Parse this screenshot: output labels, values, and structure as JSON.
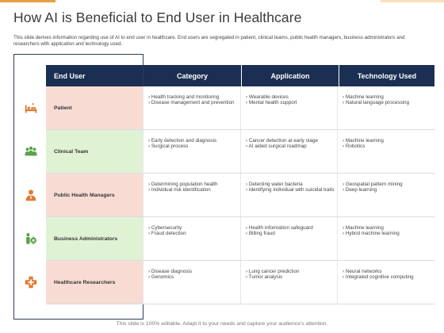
{
  "slide": {
    "title": "How AI is Beneficial to End User in Healthcare",
    "description": "This slide derives information regarding use of AI to end user in healthcare. End users are segregated in patient, clinical teams, public health managers, business administrators and researchers with application and technology used.",
    "footer": "This slide is 100% editable. Adapt it to your needs and capture your audience's attention."
  },
  "colors": {
    "header_bg": "#1b2f52",
    "pink_cell": "#f8dcd3",
    "green_cell": "#dff3d4",
    "icon_orange": "#e07a2e",
    "icon_green": "#5aa34a"
  },
  "table": {
    "headers": [
      "End User",
      "Category",
      "Application",
      "Technology Used"
    ],
    "rows": [
      {
        "user": "Patient",
        "icon": "hospital-bed-icon",
        "category": [
          "Health tracking and monitoring",
          "Disease management and prevention"
        ],
        "application": [
          "Wearable devices",
          "Mental health support"
        ],
        "technology": [
          "Machine learning",
          "Natural language processing"
        ]
      },
      {
        "user": "Clinical Team",
        "icon": "team-icon",
        "category": [
          "Early detection and diagnosis",
          "Surgical process"
        ],
        "application": [
          "Cancer detection at early stage",
          "AI aided surgical roadmap"
        ],
        "technology": [
          "Machine learning",
          "Robotics"
        ]
      },
      {
        "user": "Public Health Managers",
        "icon": "manager-icon",
        "category": [
          "Determining population health",
          "Individual risk identification"
        ],
        "application": [
          "Detecting water bacteria",
          "Identifying individual with suicidal traits"
        ],
        "technology": [
          "Geospatial pattern mining",
          "Deep learning"
        ]
      },
      {
        "user": "Business Administrators",
        "icon": "admin-gear-icon",
        "category": [
          "Cybersecurity",
          "Fraud detection"
        ],
        "application": [
          "Health information safeguard",
          "Billing fraud"
        ],
        "technology": [
          "Machine learning",
          "Hybrid machine learning"
        ]
      },
      {
        "user": "Healthcare Researchers",
        "icon": "medical-cross-icon",
        "category": [
          "Disease diagnosis",
          "Genomics"
        ],
        "application": [
          "Lung cancer prediction",
          "Tumor analysis"
        ],
        "technology": [
          "Neural networks",
          "Integrated cognitive computing"
        ]
      }
    ]
  }
}
